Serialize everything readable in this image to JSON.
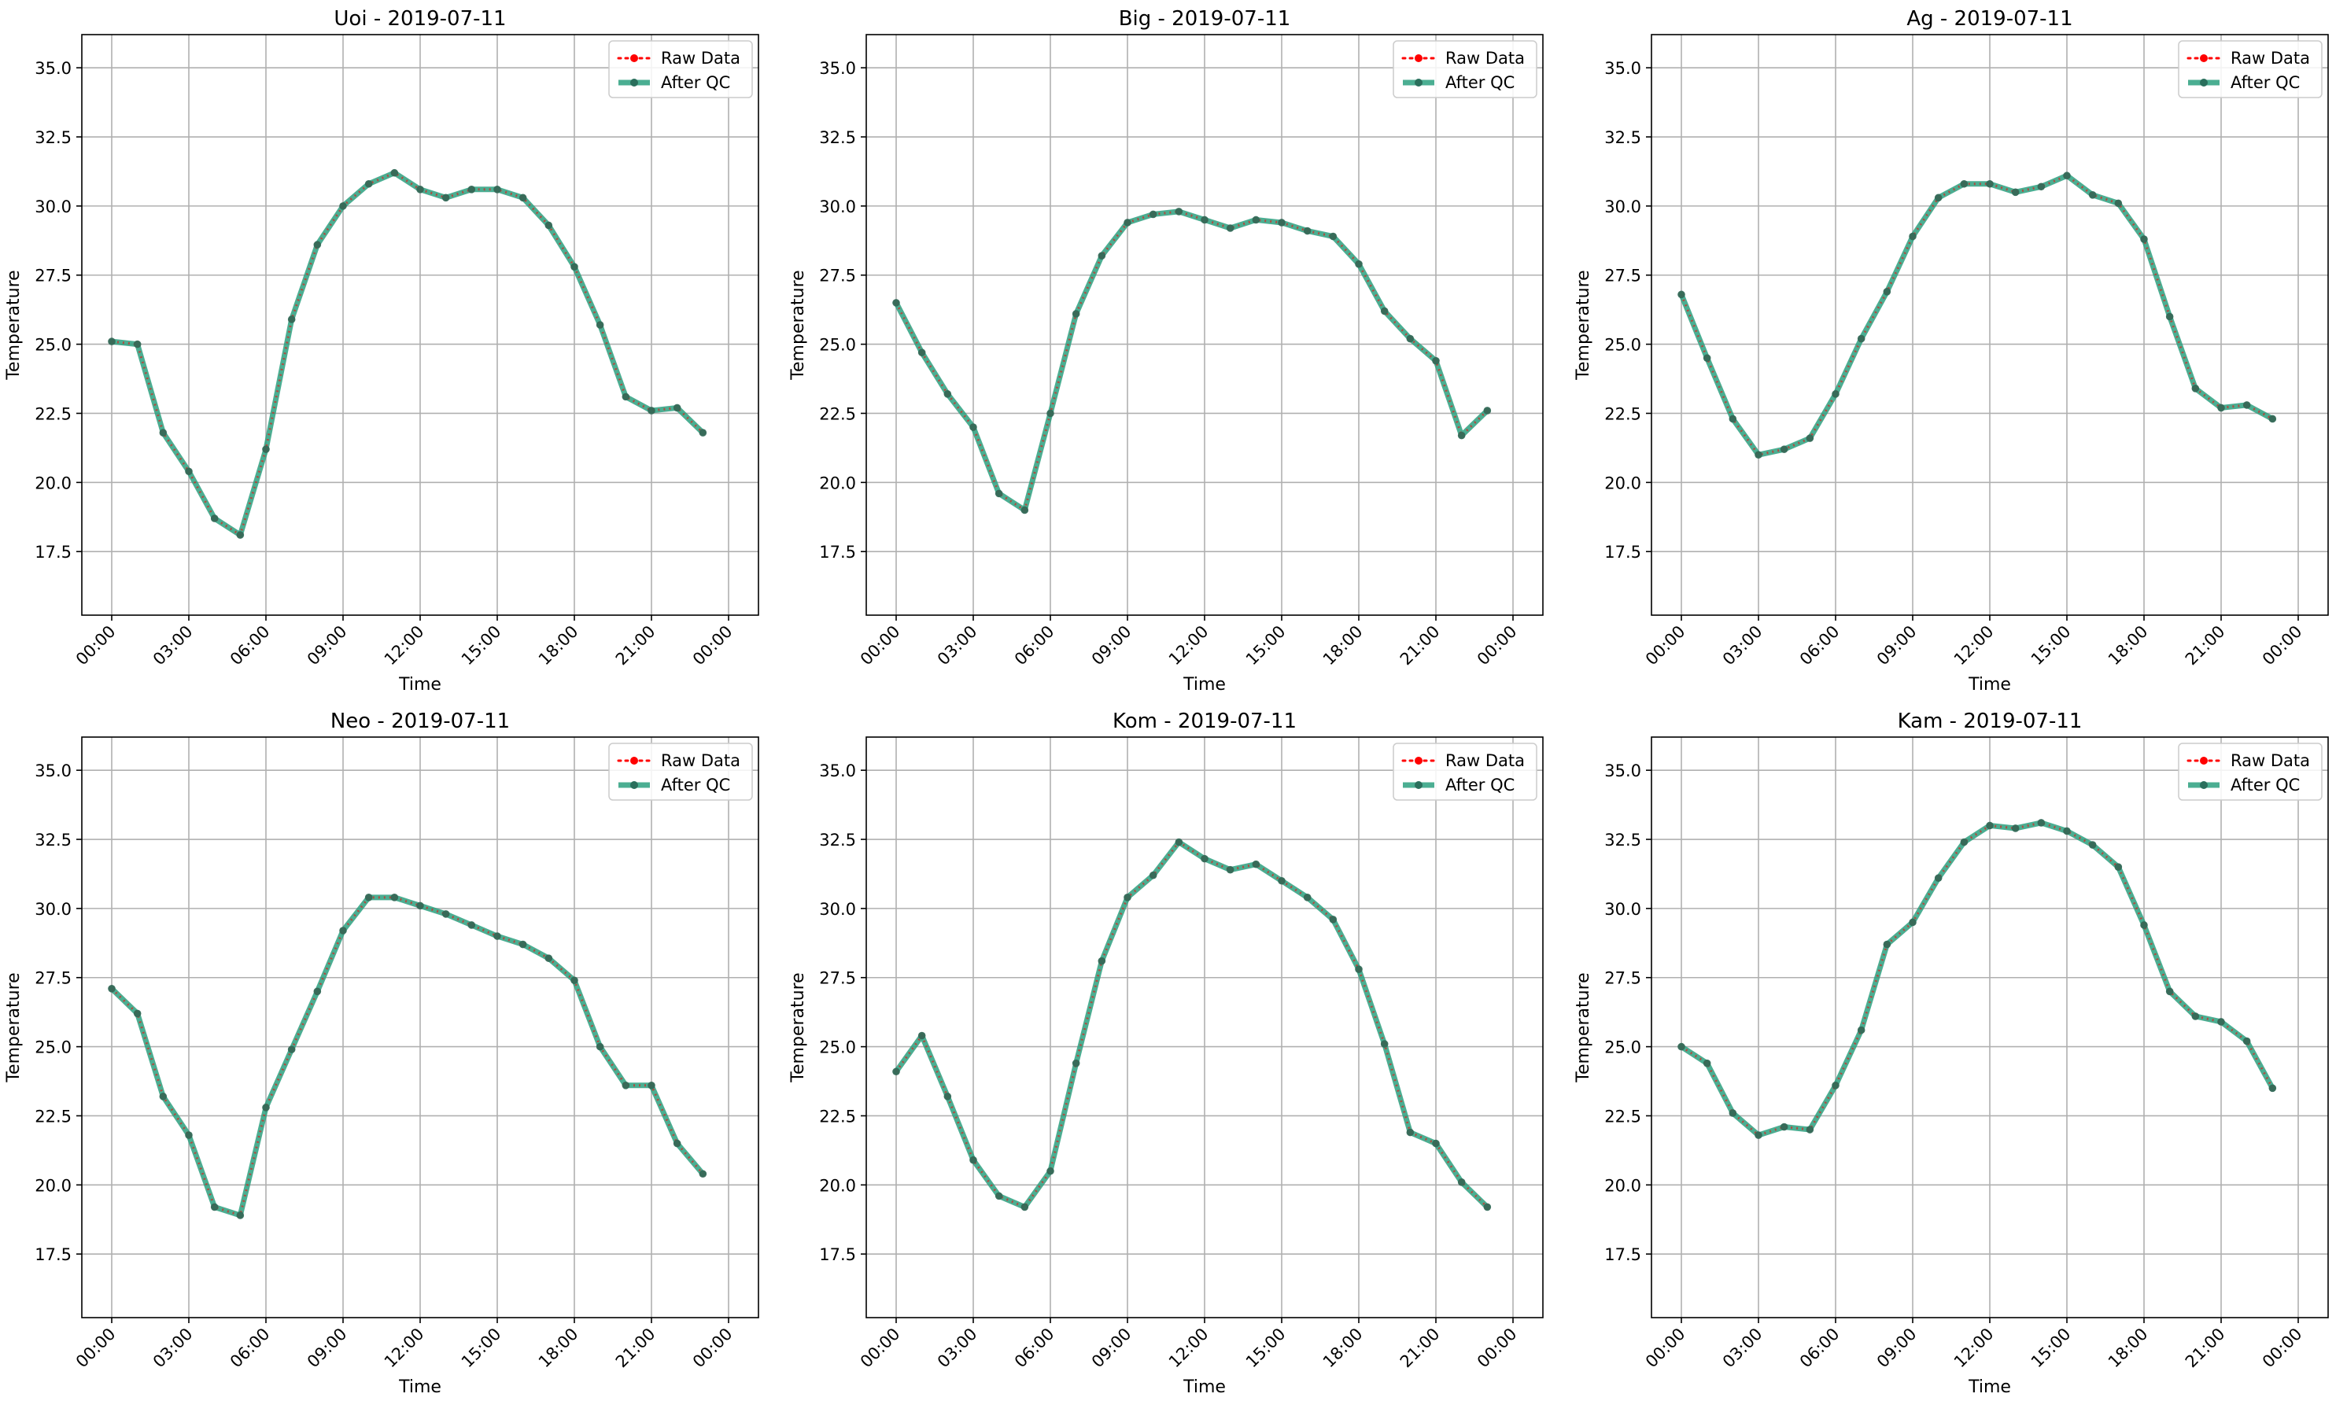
{
  "chart_data": [
    {
      "type": "line",
      "title": "Uoi - 2019-07-11",
      "xlabel": "Time",
      "ylabel": "Temperature",
      "x": [
        "00:00",
        "01:00",
        "02:00",
        "03:00",
        "04:00",
        "05:00",
        "06:00",
        "07:00",
        "08:00",
        "09:00",
        "10:00",
        "11:00",
        "12:00",
        "13:00",
        "14:00",
        "15:00",
        "16:00",
        "17:00",
        "18:00",
        "19:00",
        "20:00",
        "21:00",
        "22:00",
        "23:00"
      ],
      "xticks": [
        "00:00",
        "03:00",
        "06:00",
        "09:00",
        "12:00",
        "15:00",
        "18:00",
        "21:00",
        "00:00"
      ],
      "yticks": [
        "17.5",
        "20.0",
        "22.5",
        "25.0",
        "27.5",
        "30.0",
        "32.5",
        "35.0"
      ],
      "ylim": [
        15.2,
        36.2
      ],
      "grid": true,
      "legend_position": "upper-right",
      "series": [
        {
          "name": "Raw Data",
          "color": "#ff0000",
          "style": "dotted-markers",
          "values": [
            25.1,
            25.0,
            21.8,
            20.4,
            18.7,
            18.1,
            21.2,
            25.9,
            28.6,
            30.0,
            30.8,
            31.2,
            30.6,
            30.3,
            30.6,
            30.6,
            30.3,
            29.3,
            27.8,
            25.7,
            23.1,
            22.6,
            22.7,
            21.8
          ]
        },
        {
          "name": "After QC",
          "color": "#2ca07f",
          "style": "line-markers",
          "values": [
            25.1,
            25.0,
            21.8,
            20.4,
            18.7,
            18.1,
            21.2,
            25.9,
            28.6,
            30.0,
            30.8,
            31.2,
            30.6,
            30.3,
            30.6,
            30.6,
            30.3,
            29.3,
            27.8,
            25.7,
            23.1,
            22.6,
            22.7,
            21.8
          ]
        }
      ]
    },
    {
      "type": "line",
      "title": "Big - 2019-07-11",
      "xlabel": "Time",
      "ylabel": "Temperature",
      "x": [
        "00:00",
        "01:00",
        "02:00",
        "03:00",
        "04:00",
        "05:00",
        "06:00",
        "07:00",
        "08:00",
        "09:00",
        "10:00",
        "11:00",
        "12:00",
        "13:00",
        "14:00",
        "15:00",
        "16:00",
        "17:00",
        "18:00",
        "19:00",
        "20:00",
        "21:00",
        "22:00",
        "23:00"
      ],
      "xticks": [
        "00:00",
        "03:00",
        "06:00",
        "09:00",
        "12:00",
        "15:00",
        "18:00",
        "21:00",
        "00:00"
      ],
      "yticks": [
        "17.5",
        "20.0",
        "22.5",
        "25.0",
        "27.5",
        "30.0",
        "32.5",
        "35.0"
      ],
      "ylim": [
        15.2,
        36.2
      ],
      "grid": true,
      "legend_position": "upper-right",
      "series": [
        {
          "name": "Raw Data",
          "color": "#ff0000",
          "style": "dotted-markers",
          "values": [
            26.5,
            24.7,
            23.2,
            22.0,
            19.6,
            19.0,
            22.5,
            26.1,
            28.2,
            29.4,
            29.7,
            29.8,
            29.5,
            29.2,
            29.5,
            29.4,
            29.1,
            28.9,
            27.9,
            26.2,
            25.2,
            24.4,
            21.7,
            22.6
          ]
        },
        {
          "name": "After QC",
          "color": "#2ca07f",
          "style": "line-markers",
          "values": [
            26.5,
            24.7,
            23.2,
            22.0,
            19.6,
            19.0,
            22.5,
            26.1,
            28.2,
            29.4,
            29.7,
            29.8,
            29.5,
            29.2,
            29.5,
            29.4,
            29.1,
            28.9,
            27.9,
            26.2,
            25.2,
            24.4,
            21.7,
            22.6
          ]
        }
      ]
    },
    {
      "type": "line",
      "title": "Ag - 2019-07-11",
      "xlabel": "Time",
      "ylabel": "Temperature",
      "x": [
        "00:00",
        "01:00",
        "02:00",
        "03:00",
        "04:00",
        "05:00",
        "06:00",
        "07:00",
        "08:00",
        "09:00",
        "10:00",
        "11:00",
        "12:00",
        "13:00",
        "14:00",
        "15:00",
        "16:00",
        "17:00",
        "18:00",
        "19:00",
        "20:00",
        "21:00",
        "22:00",
        "23:00"
      ],
      "xticks": [
        "00:00",
        "03:00",
        "06:00",
        "09:00",
        "12:00",
        "15:00",
        "18:00",
        "21:00",
        "00:00"
      ],
      "yticks": [
        "17.5",
        "20.0",
        "22.5",
        "25.0",
        "27.5",
        "30.0",
        "32.5",
        "35.0"
      ],
      "ylim": [
        15.2,
        36.2
      ],
      "grid": true,
      "legend_position": "upper-right",
      "series": [
        {
          "name": "Raw Data",
          "color": "#ff0000",
          "style": "dotted-markers",
          "values": [
            26.8,
            24.5,
            22.3,
            21.0,
            21.2,
            21.6,
            23.2,
            25.2,
            26.9,
            28.9,
            30.3,
            30.8,
            30.8,
            30.5,
            30.7,
            31.1,
            30.4,
            30.1,
            28.8,
            26.0,
            23.4,
            22.7,
            22.8,
            22.3
          ]
        },
        {
          "name": "After QC",
          "color": "#2ca07f",
          "style": "line-markers",
          "values": [
            26.8,
            24.5,
            22.3,
            21.0,
            21.2,
            21.6,
            23.2,
            25.2,
            26.9,
            28.9,
            30.3,
            30.8,
            30.8,
            30.5,
            30.7,
            31.1,
            30.4,
            30.1,
            28.8,
            26.0,
            23.4,
            22.7,
            22.8,
            22.3
          ]
        }
      ]
    },
    {
      "type": "line",
      "title": "Neo - 2019-07-11",
      "xlabel": "Time",
      "ylabel": "Temperature",
      "x": [
        "00:00",
        "01:00",
        "02:00",
        "03:00",
        "04:00",
        "05:00",
        "06:00",
        "07:00",
        "08:00",
        "09:00",
        "10:00",
        "11:00",
        "12:00",
        "13:00",
        "14:00",
        "15:00",
        "16:00",
        "17:00",
        "18:00",
        "19:00",
        "20:00",
        "21:00",
        "22:00",
        "23:00"
      ],
      "xticks": [
        "00:00",
        "03:00",
        "06:00",
        "09:00",
        "12:00",
        "15:00",
        "18:00",
        "21:00",
        "00:00"
      ],
      "yticks": [
        "17.5",
        "20.0",
        "22.5",
        "25.0",
        "27.5",
        "30.0",
        "32.5",
        "35.0"
      ],
      "ylim": [
        15.2,
        36.2
      ],
      "grid": true,
      "legend_position": "upper-right",
      "series": [
        {
          "name": "Raw Data",
          "color": "#ff0000",
          "style": "dotted-markers",
          "values": [
            27.1,
            26.2,
            23.2,
            21.8,
            19.2,
            18.9,
            22.8,
            24.9,
            27.0,
            29.2,
            30.4,
            30.4,
            30.1,
            29.8,
            29.4,
            29.0,
            28.7,
            28.2,
            27.4,
            25.0,
            23.6,
            23.6,
            21.5,
            20.4
          ]
        },
        {
          "name": "After QC",
          "color": "#2ca07f",
          "style": "line-markers",
          "values": [
            27.1,
            26.2,
            23.2,
            21.8,
            19.2,
            18.9,
            22.8,
            24.9,
            27.0,
            29.2,
            30.4,
            30.4,
            30.1,
            29.8,
            29.4,
            29.0,
            28.7,
            28.2,
            27.4,
            25.0,
            23.6,
            23.6,
            21.5,
            20.4
          ]
        }
      ]
    },
    {
      "type": "line",
      "title": "Kom - 2019-07-11",
      "xlabel": "Time",
      "ylabel": "Temperature",
      "x": [
        "00:00",
        "01:00",
        "02:00",
        "03:00",
        "04:00",
        "05:00",
        "06:00",
        "07:00",
        "08:00",
        "09:00",
        "10:00",
        "11:00",
        "12:00",
        "13:00",
        "14:00",
        "15:00",
        "16:00",
        "17:00",
        "18:00",
        "19:00",
        "20:00",
        "21:00",
        "22:00",
        "23:00"
      ],
      "xticks": [
        "00:00",
        "03:00",
        "06:00",
        "09:00",
        "12:00",
        "15:00",
        "18:00",
        "21:00",
        "00:00"
      ],
      "yticks": [
        "17.5",
        "20.0",
        "22.5",
        "25.0",
        "27.5",
        "30.0",
        "32.5",
        "35.0"
      ],
      "ylim": [
        15.2,
        36.2
      ],
      "grid": true,
      "legend_position": "upper-right",
      "series": [
        {
          "name": "Raw Data",
          "color": "#ff0000",
          "style": "dotted-markers",
          "values": [
            24.1,
            25.4,
            23.2,
            20.9,
            19.6,
            19.2,
            20.5,
            24.4,
            28.1,
            30.4,
            31.2,
            32.4,
            31.8,
            31.4,
            31.6,
            31.0,
            30.4,
            29.6,
            27.8,
            25.1,
            21.9,
            21.5,
            20.1,
            19.2
          ]
        },
        {
          "name": "After QC",
          "color": "#2ca07f",
          "style": "line-markers",
          "values": [
            24.1,
            25.4,
            23.2,
            20.9,
            19.6,
            19.2,
            20.5,
            24.4,
            28.1,
            30.4,
            31.2,
            32.4,
            31.8,
            31.4,
            31.6,
            31.0,
            30.4,
            29.6,
            27.8,
            25.1,
            21.9,
            21.5,
            20.1,
            19.2
          ]
        }
      ]
    },
    {
      "type": "line",
      "title": "Kam - 2019-07-11",
      "xlabel": "Time",
      "ylabel": "Temperature",
      "x": [
        "00:00",
        "01:00",
        "02:00",
        "03:00",
        "04:00",
        "05:00",
        "06:00",
        "07:00",
        "08:00",
        "09:00",
        "10:00",
        "11:00",
        "12:00",
        "13:00",
        "14:00",
        "15:00",
        "16:00",
        "17:00",
        "18:00",
        "19:00",
        "20:00",
        "21:00",
        "22:00",
        "23:00"
      ],
      "xticks": [
        "00:00",
        "03:00",
        "06:00",
        "09:00",
        "12:00",
        "15:00",
        "18:00",
        "21:00",
        "00:00"
      ],
      "yticks": [
        "17.5",
        "20.0",
        "22.5",
        "25.0",
        "27.5",
        "30.0",
        "32.5",
        "35.0"
      ],
      "ylim": [
        15.2,
        36.2
      ],
      "grid": true,
      "legend_position": "upper-right",
      "series": [
        {
          "name": "Raw Data",
          "color": "#ff0000",
          "style": "dotted-markers",
          "values": [
            25.0,
            24.4,
            22.6,
            21.8,
            22.1,
            22.0,
            23.6,
            25.6,
            28.7,
            29.5,
            31.1,
            32.4,
            33.0,
            32.9,
            33.1,
            32.8,
            32.3,
            31.5,
            29.4,
            27.0,
            26.1,
            25.9,
            25.2,
            23.5
          ]
        },
        {
          "name": "After QC",
          "color": "#2ca07f",
          "style": "line-markers",
          "values": [
            25.0,
            24.4,
            22.6,
            21.8,
            22.1,
            22.0,
            23.6,
            25.6,
            28.7,
            29.5,
            31.1,
            32.4,
            33.0,
            32.9,
            33.1,
            32.8,
            32.3,
            31.5,
            29.4,
            27.0,
            26.1,
            25.9,
            25.2,
            23.5
          ]
        }
      ]
    }
  ]
}
